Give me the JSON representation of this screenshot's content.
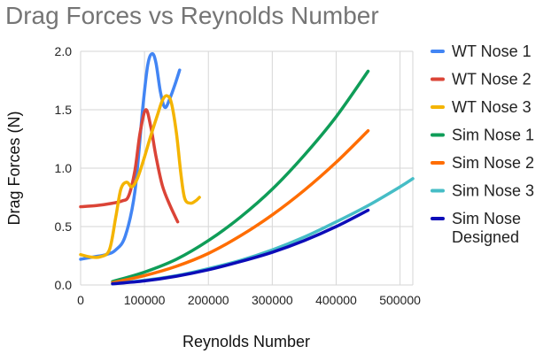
{
  "chart_data": {
    "type": "line",
    "title": "Drag Forces vs Reynolds Number",
    "xlabel": "Reynolds Number",
    "ylabel": "Drag Forces (N)",
    "xlim": [
      0,
      520000
    ],
    "ylim": [
      0,
      2.0
    ],
    "x_ticks": [
      0,
      100000,
      200000,
      300000,
      400000,
      500000
    ],
    "y_ticks": [
      "0.0",
      "0.5",
      "1.0",
      "1.5",
      "2.0"
    ],
    "grid": true,
    "legend_position": "right",
    "series": [
      {
        "name": "WT Nose 1",
        "color": "#4285f4",
        "points": [
          [
            0,
            0.22
          ],
          [
            20000,
            0.24
          ],
          [
            40000,
            0.26
          ],
          [
            55000,
            0.3
          ],
          [
            70000,
            0.42
          ],
          [
            85000,
            0.8
          ],
          [
            97000,
            1.5
          ],
          [
            105000,
            1.88
          ],
          [
            112000,
            1.98
          ],
          [
            118000,
            1.9
          ],
          [
            125000,
            1.65
          ],
          [
            132000,
            1.52
          ],
          [
            140000,
            1.6
          ],
          [
            148000,
            1.72
          ],
          [
            155000,
            1.84
          ]
        ]
      },
      {
        "name": "WT Nose 2",
        "color": "#db4437",
        "points": [
          [
            0,
            0.67
          ],
          [
            25000,
            0.68
          ],
          [
            50000,
            0.7
          ],
          [
            65000,
            0.72
          ],
          [
            75000,
            0.76
          ],
          [
            85000,
            0.98
          ],
          [
            93000,
            1.3
          ],
          [
            102000,
            1.5
          ],
          [
            110000,
            1.35
          ],
          [
            118000,
            1.1
          ],
          [
            128000,
            0.85
          ],
          [
            140000,
            0.68
          ],
          [
            152000,
            0.54
          ]
        ]
      },
      {
        "name": "WT Nose 3",
        "color": "#f4b400",
        "points": [
          [
            0,
            0.26
          ],
          [
            15000,
            0.24
          ],
          [
            30000,
            0.24
          ],
          [
            45000,
            0.3
          ],
          [
            55000,
            0.58
          ],
          [
            63000,
            0.82
          ],
          [
            72000,
            0.88
          ],
          [
            80000,
            0.84
          ],
          [
            88000,
            0.9
          ],
          [
            98000,
            1.06
          ],
          [
            110000,
            1.28
          ],
          [
            120000,
            1.45
          ],
          [
            128000,
            1.58
          ],
          [
            135000,
            1.62
          ],
          [
            142000,
            1.56
          ],
          [
            150000,
            1.3
          ],
          [
            157000,
            0.95
          ],
          [
            163000,
            0.74
          ],
          [
            172000,
            0.7
          ],
          [
            180000,
            0.72
          ],
          [
            186000,
            0.75
          ]
        ]
      },
      {
        "name": "Sim Nose 1",
        "color": "#0f9d58",
        "points": [
          [
            50000,
            0.03
          ],
          [
            100000,
            0.11
          ],
          [
            150000,
            0.22
          ],
          [
            200000,
            0.38
          ],
          [
            250000,
            0.58
          ],
          [
            300000,
            0.82
          ],
          [
            350000,
            1.11
          ],
          [
            400000,
            1.44
          ],
          [
            450000,
            1.83
          ]
        ]
      },
      {
        "name": "Sim Nose 2",
        "color": "#ff6d01",
        "points": [
          [
            50000,
            0.02
          ],
          [
            100000,
            0.08
          ],
          [
            150000,
            0.16
          ],
          [
            200000,
            0.27
          ],
          [
            250000,
            0.42
          ],
          [
            300000,
            0.6
          ],
          [
            350000,
            0.81
          ],
          [
            400000,
            1.05
          ],
          [
            450000,
            1.32
          ]
        ]
      },
      {
        "name": "Sim Nose 3",
        "color": "#46bdc6",
        "points": [
          [
            50000,
            0.01
          ],
          [
            100000,
            0.04
          ],
          [
            150000,
            0.08
          ],
          [
            200000,
            0.14
          ],
          [
            250000,
            0.21
          ],
          [
            300000,
            0.3
          ],
          [
            350000,
            0.41
          ],
          [
            400000,
            0.54
          ],
          [
            450000,
            0.68
          ],
          [
            500000,
            0.84
          ],
          [
            520000,
            0.91
          ]
        ]
      },
      {
        "name": "Sim Nose Designed",
        "label_lines": [
          "Sim Nose",
          "Designed"
        ],
        "color": "#0c0cb8",
        "points": [
          [
            50000,
            0.01
          ],
          [
            100000,
            0.035
          ],
          [
            150000,
            0.075
          ],
          [
            200000,
            0.13
          ],
          [
            250000,
            0.2
          ],
          [
            300000,
            0.28
          ],
          [
            350000,
            0.38
          ],
          [
            400000,
            0.5
          ],
          [
            450000,
            0.64
          ]
        ]
      }
    ]
  }
}
